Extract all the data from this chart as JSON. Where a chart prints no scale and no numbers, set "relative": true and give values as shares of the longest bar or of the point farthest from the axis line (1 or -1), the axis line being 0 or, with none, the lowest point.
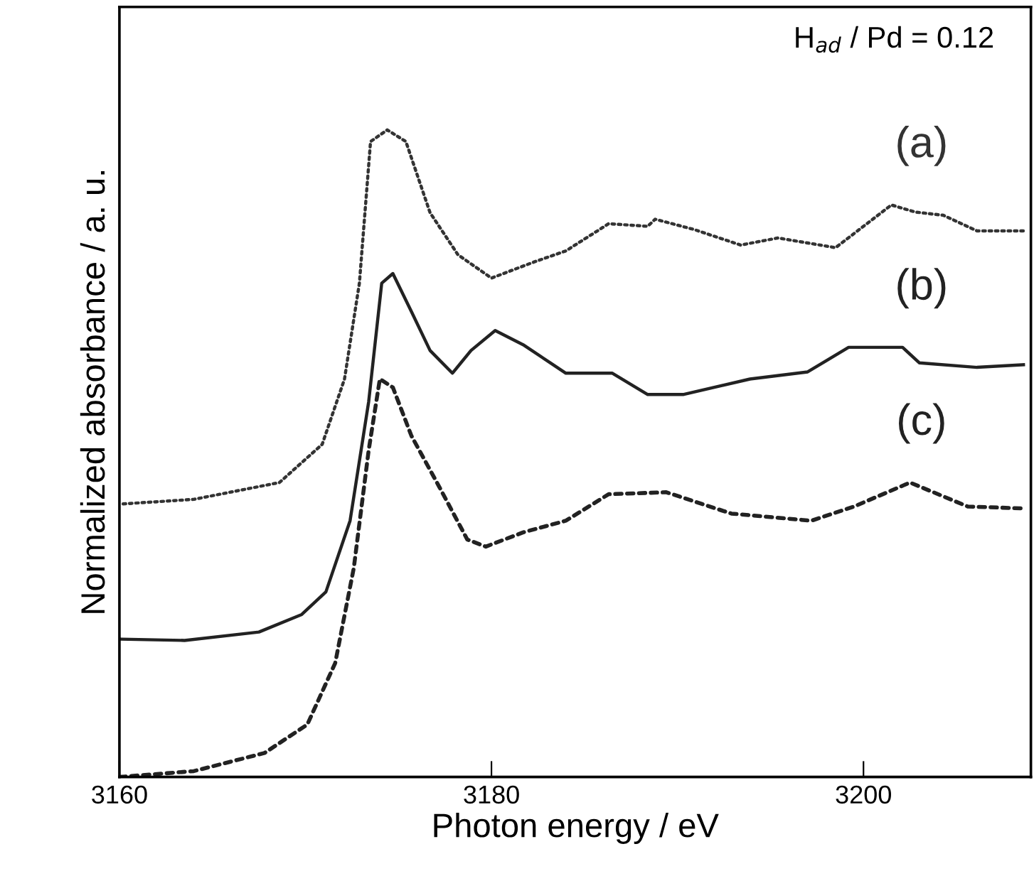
{
  "chart_data": {
    "type": "line",
    "relative": true,
    "xlabel": "Photon energy / eV",
    "ylabel": "Normalized absorbance / a. u.",
    "xlim": [
      3160,
      3209
    ],
    "xticks": [
      3160,
      3180,
      3200
    ],
    "grid": false,
    "annotations": [
      "H$_{ad}$ / Pd = 0.12"
    ],
    "series": [
      {
        "name": "(a)",
        "color": "#333333",
        "line_style": "dotted",
        "x": [
          3160.2,
          3164,
          3168.6,
          3170.9,
          3172.1,
          3172.9,
          3173.5,
          3174.4,
          3175.4,
          3176.7,
          3178.2,
          3180.0,
          3182.3,
          3184.0,
          3186.3,
          3188.4,
          3188.8,
          3190.9,
          3193.4,
          3195.4,
          3198.5,
          3201.5,
          3202.8,
          3204.3,
          3206.1,
          3208.6
        ],
        "values": [
          0.422,
          0.429,
          0.455,
          0.514,
          0.615,
          0.763,
          0.982,
          1.0,
          0.982,
          0.872,
          0.807,
          0.771,
          0.796,
          0.813,
          0.855,
          0.851,
          0.862,
          0.846,
          0.822,
          0.833,
          0.818,
          0.884,
          0.873,
          0.868,
          0.844,
          0.844
        ]
      },
      {
        "name": "(b)",
        "color": "#222222",
        "line_style": "solid",
        "x": [
          3160.1,
          3163.5,
          3167.5,
          3169.8,
          3171.1,
          3172.4,
          3173.4,
          3174.1,
          3174.7,
          3175.7,
          3176.7,
          3177.9,
          3178.9,
          3180.2,
          3181.7,
          3184.0,
          3186.5,
          3188.4,
          3190.3,
          3193.9,
          3197.0,
          3199.2,
          3202.1,
          3203.0,
          3206.1,
          3208.6
        ],
        "values": [
          0.213,
          0.211,
          0.224,
          0.251,
          0.286,
          0.396,
          0.58,
          0.763,
          0.778,
          0.719,
          0.659,
          0.624,
          0.659,
          0.69,
          0.668,
          0.624,
          0.624,
          0.591,
          0.591,
          0.615,
          0.626,
          0.664,
          0.664,
          0.64,
          0.633,
          0.637
        ]
      },
      {
        "name": "(c)",
        "color": "#222222",
        "line_style": "dashed",
        "x": [
          3160,
          3164,
          3167.8,
          3170.1,
          3171.6,
          3172.6,
          3173.4,
          3174.0,
          3174.7,
          3175.7,
          3177.2,
          3178.7,
          3179.7,
          3181.7,
          3184.0,
          3186.3,
          3189.4,
          3192.9,
          3197.2,
          3199.5,
          3202.5,
          3205.6,
          3208.6
        ],
        "values": [
          0,
          0.009,
          0.037,
          0.081,
          0.176,
          0.323,
          0.505,
          0.615,
          0.602,
          0.527,
          0.448,
          0.367,
          0.356,
          0.378,
          0.396,
          0.437,
          0.44,
          0.407,
          0.396,
          0.418,
          0.455,
          0.418,
          0.415
        ]
      }
    ]
  }
}
